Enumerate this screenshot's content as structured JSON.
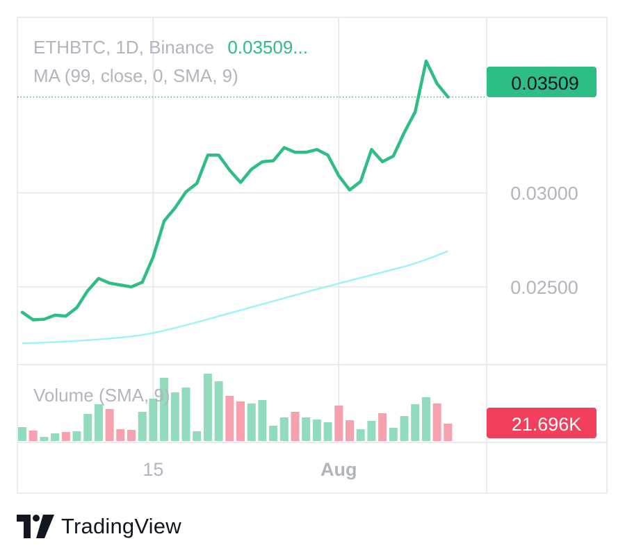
{
  "legend": {
    "symbol_line": "ETHBTC, 1D, Binance",
    "last_value_label": "0.03509...",
    "ma_line": "MA (99, close, 0, SMA, 9)",
    "volume_line": "Volume (SMA, 9)"
  },
  "badges": {
    "price": "0.03509",
    "volume": "21.696K"
  },
  "brand": {
    "name": "TradingView"
  },
  "colors": {
    "up": "#2dbd85",
    "price_badge": "#2dbd85",
    "volume_badge": "#f23f5b",
    "vol_up": "#92dcbd",
    "vol_down": "#f6a1ad",
    "ma": "#9ef3f9",
    "grid": "#e6e6e6",
    "axis_text": "#b2b5be",
    "legend_text": "#b2b5be"
  },
  "chart_data": [
    {
      "type": "line",
      "pane": "price",
      "series": [
        {
          "values": [
            0.02365,
            0.02325,
            0.02328,
            0.0235,
            0.02345,
            0.0239,
            0.0248,
            0.02545,
            0.0252,
            0.0251,
            0.025,
            0.02525,
            0.0266,
            0.0285,
            0.0292,
            0.03005,
            0.0305,
            0.032,
            0.032,
            0.0312,
            0.03055,
            0.03125,
            0.03165,
            0.0317,
            0.0324,
            0.03215,
            0.03215,
            0.0323,
            0.032,
            0.0309,
            0.03015,
            0.0306,
            0.0323,
            0.03165,
            0.03195,
            0.0332,
            0.0343,
            0.037,
            0.0358,
            0.03509
          ]
        },
        {
          "name": "MA (99, close, 0, SMA, 9)",
          "values": [
            0.022,
            0.02202,
            0.02204,
            0.02207,
            0.0221,
            0.02213,
            0.02217,
            0.02221,
            0.02226,
            0.02231,
            0.02237,
            0.02245,
            0.02255,
            0.02268,
            0.02282,
            0.02297,
            0.02312,
            0.02328,
            0.02344,
            0.0236,
            0.02376,
            0.02392,
            0.02408,
            0.02424,
            0.0244,
            0.02456,
            0.02472,
            0.02488,
            0.02503,
            0.02518,
            0.02533,
            0.02548,
            0.02563,
            0.02578,
            0.02593,
            0.02608,
            0.02625,
            0.02645,
            0.02667,
            0.0269
          ]
        }
      ],
      "last_value": 0.03509,
      "y_ticks": [
        "0.03000",
        "0.02500"
      ],
      "y_tick_values": [
        0.03,
        0.025
      ],
      "ylim": [
        0.02087,
        0.03932
      ],
      "x_ticks": [
        {
          "label": "15",
          "index": 12
        },
        {
          "label": "Aug",
          "index": 29
        }
      ],
      "grid": true
    },
    {
      "type": "bar",
      "pane": "volume",
      "values": [
        20,
        15,
        6,
        11,
        13,
        14,
        39,
        53,
        46,
        17,
        16,
        42,
        61,
        91,
        70,
        77,
        14,
        97,
        86,
        65,
        57,
        54,
        59,
        22,
        34,
        42,
        34,
        31,
        27,
        51,
        30,
        17,
        29,
        40,
        19,
        36,
        53,
        63,
        54,
        25
      ],
      "directions": [
        "up",
        "down",
        "up",
        "up",
        "down",
        "up",
        "up",
        "up",
        "down",
        "down",
        "down",
        "up",
        "up",
        "up",
        "up",
        "up",
        "up",
        "up",
        "up",
        "down",
        "down",
        "up",
        "up",
        "up",
        "up",
        "down",
        "up",
        "up",
        "up",
        "down",
        "down",
        "up",
        "up",
        "down",
        "up",
        "up",
        "up",
        "up",
        "down",
        "down"
      ],
      "ylim": [
        0,
        100
      ],
      "last_value_label": "21.696K"
    }
  ]
}
